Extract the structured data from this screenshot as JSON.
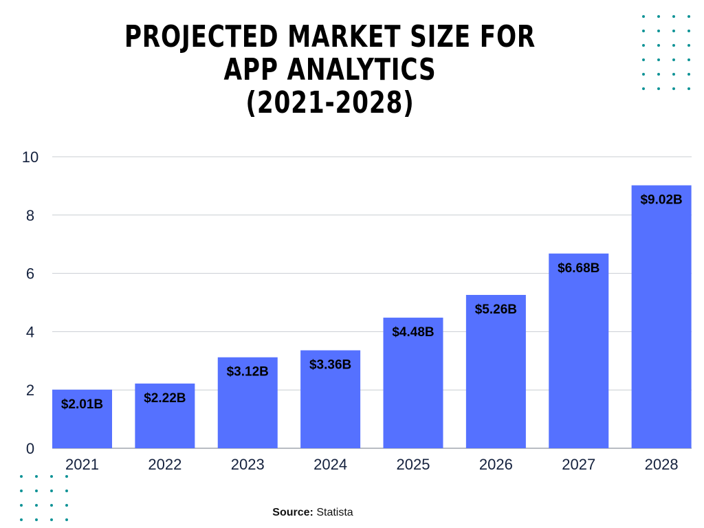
{
  "chart_data": {
    "type": "bar",
    "title": [
      "PROJECTED MARKET SIZE FOR",
      "APP ANALYTICS",
      "(2021-2028)"
    ],
    "categories": [
      "2021",
      "2022",
      "2023",
      "2024",
      "2025",
      "2026",
      "2027",
      "2028"
    ],
    "values": [
      2.01,
      2.22,
      3.12,
      3.36,
      4.48,
      5.26,
      6.68,
      9.02
    ],
    "data_labels": [
      "$2.01B",
      "$2.22B",
      "$3.12B",
      "$3.36B",
      "$4.48B",
      "$5.26B",
      "$6.68B",
      "$9.02B"
    ],
    "xlabel": "",
    "ylabel": "",
    "ylim": [
      0,
      10
    ],
    "yticks": [
      "0",
      "2",
      "4",
      "6",
      "8",
      "10"
    ],
    "grid": true,
    "bar_color": "#5571ff",
    "decoration_color": "#0f9396"
  },
  "source": {
    "label": "Source:",
    "value": "Statista"
  }
}
